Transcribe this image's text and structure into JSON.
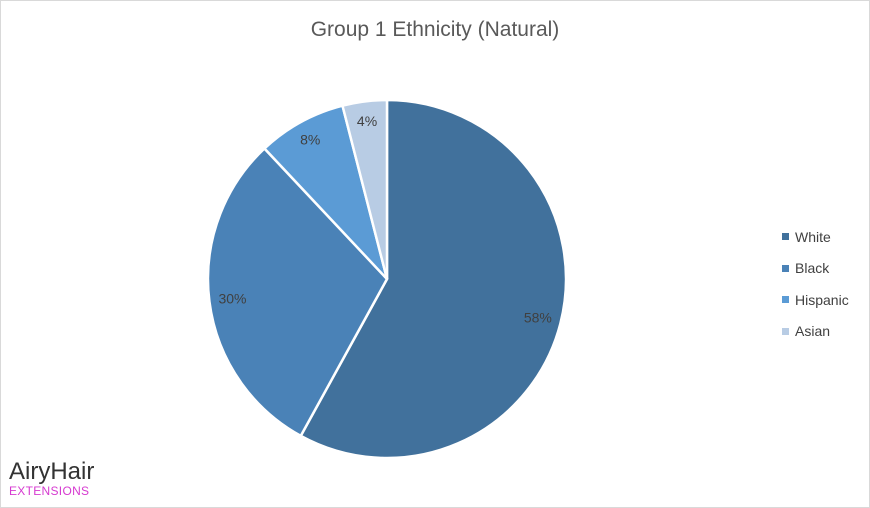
{
  "chart_data": {
    "type": "pie",
    "title": "Group 1 Ethnicity (Natural)",
    "categories": [
      "White",
      "Black",
      "Hispanic",
      "Asian"
    ],
    "values": [
      58,
      30,
      8,
      4
    ],
    "data_labels": [
      "58%",
      "30%",
      "8%",
      "4%"
    ],
    "colors": [
      "#41719c",
      "#4a82b7",
      "#5b9bd5",
      "#b8cce4"
    ],
    "legend_position": "right",
    "start": "top",
    "direction": "clockwise"
  },
  "branding": {
    "logo_main": "AiryHair",
    "logo_sub": "EXTENSIONS"
  }
}
